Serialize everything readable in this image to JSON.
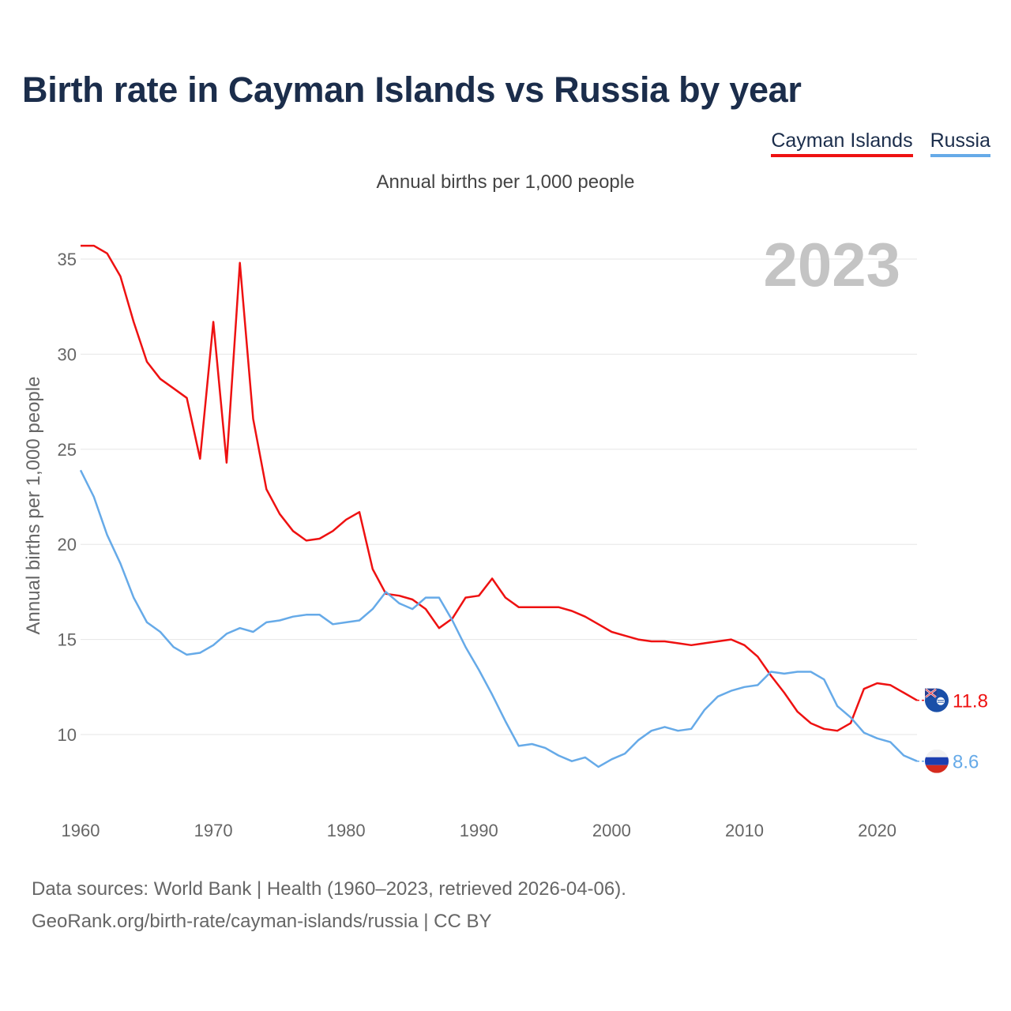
{
  "title": "Birth rate in Cayman Islands vs Russia by year",
  "subtitle": "Annual births per 1,000 people",
  "legend": [
    {
      "label": "Cayman Islands",
      "color": "#ee1111"
    },
    {
      "label": "Russia",
      "color": "#66aae8"
    }
  ],
  "source": {
    "line1": "Data sources: World Bank | Health (1960–2023, retrieved 2026-04-06).",
    "line2": "GeoRank.org/birth-rate/cayman-islands/russia | CC BY"
  },
  "chart_data": {
    "type": "line",
    "title": "Birth rate in Cayman Islands vs Russia by year",
    "subtitle": "Annual births per 1,000 people",
    "xlabel": "",
    "ylabel": "Annual births per 1,000 people",
    "xlim": [
      1960,
      2023
    ],
    "ylim": [
      7,
      37
    ],
    "yticks": [
      10,
      15,
      20,
      25,
      30,
      35
    ],
    "xticks": [
      1960,
      1970,
      1980,
      1990,
      2000,
      2010,
      2020
    ],
    "grid": true,
    "legend_position": "top-right",
    "year_label": "2023",
    "x": [
      1960,
      1961,
      1962,
      1963,
      1964,
      1965,
      1966,
      1967,
      1968,
      1969,
      1970,
      1971,
      1972,
      1973,
      1974,
      1975,
      1976,
      1977,
      1978,
      1979,
      1980,
      1981,
      1982,
      1983,
      1984,
      1985,
      1986,
      1987,
      1988,
      1989,
      1990,
      1991,
      1992,
      1993,
      1994,
      1995,
      1996,
      1997,
      1998,
      1999,
      2000,
      2001,
      2002,
      2003,
      2004,
      2005,
      2006,
      2007,
      2008,
      2009,
      2010,
      2011,
      2012,
      2013,
      2014,
      2015,
      2016,
      2017,
      2018,
      2019,
      2020,
      2021,
      2022,
      2023
    ],
    "series": [
      {
        "name": "Cayman Islands",
        "color": "#ee1111",
        "end_label": "11.8",
        "values": [
          35.7,
          35.7,
          35.3,
          34.1,
          31.7,
          29.6,
          28.7,
          28.2,
          27.7,
          24.5,
          31.7,
          24.3,
          34.8,
          26.6,
          22.9,
          21.6,
          20.7,
          20.2,
          20.3,
          20.7,
          21.3,
          21.7,
          18.7,
          17.4,
          17.3,
          17.1,
          16.6,
          15.6,
          16.1,
          17.2,
          17.3,
          18.2,
          17.2,
          16.7,
          16.7,
          16.7,
          16.7,
          16.5,
          16.2,
          15.8,
          15.4,
          15.2,
          15.0,
          14.9,
          14.9,
          14.8,
          14.7,
          14.8,
          14.9,
          15.0,
          14.7,
          14.1,
          13.1,
          12.2,
          11.2,
          10.6,
          10.3,
          10.2,
          10.6,
          12.4,
          12.7,
          12.6,
          12.2,
          11.8
        ]
      },
      {
        "name": "Russia",
        "color": "#66aae8",
        "end_label": "8.6",
        "values": [
          23.9,
          22.5,
          20.5,
          19.0,
          17.2,
          15.9,
          15.4,
          14.6,
          14.2,
          14.3,
          14.7,
          15.3,
          15.6,
          15.4,
          15.9,
          16.0,
          16.2,
          16.3,
          16.3,
          15.8,
          15.9,
          16.0,
          16.6,
          17.5,
          16.9,
          16.6,
          17.2,
          17.2,
          16.0,
          14.6,
          13.4,
          12.1,
          10.7,
          9.4,
          9.5,
          9.3,
          8.9,
          8.6,
          8.8,
          8.3,
          8.7,
          9.0,
          9.7,
          10.2,
          10.4,
          10.2,
          10.3,
          11.3,
          12.0,
          12.3,
          12.5,
          12.6,
          13.3,
          13.2,
          13.3,
          13.3,
          12.9,
          11.5,
          10.9,
          10.1,
          9.8,
          9.6,
          8.9,
          8.6
        ]
      }
    ]
  }
}
